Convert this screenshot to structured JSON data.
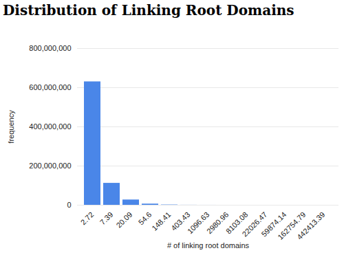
{
  "chart_data": {
    "type": "bar",
    "title": "Distribution of Linking Root Domains",
    "x_label": "# of linking root domains",
    "y_label": "frequency",
    "categories": [
      "2.72",
      "7.39",
      "20.09",
      "54.6",
      "148.41",
      "403.43",
      "1096.63",
      "2980.96",
      "8103.08",
      "22026.47",
      "59874.14",
      "162754.79",
      "442413.39"
    ],
    "values": [
      630000000,
      112000000,
      27000000,
      6000000,
      1500000,
      300000,
      80000,
      20000,
      5000,
      1000,
      300,
      50,
      10
    ],
    "color": "#4a86e8",
    "ylim": [
      0,
      800000000
    ],
    "yticks": [
      0,
      {
        "value": 200000000,
        "label": "200,000,000"
      },
      {
        "value": 400000000,
        "label": "400,000,000"
      },
      {
        "value": 600000000,
        "label": "600,000,000"
      },
      {
        "value": 800000000,
        "label": "800,000,000"
      }
    ],
    "grid": true
  }
}
